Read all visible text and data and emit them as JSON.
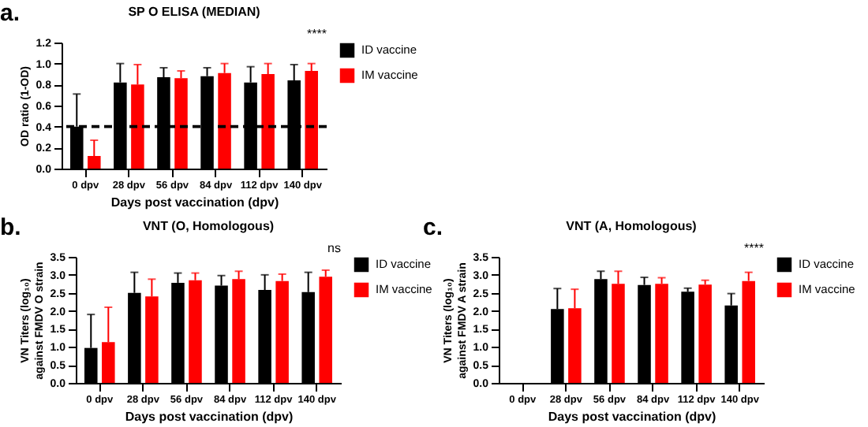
{
  "chart_data": [
    {
      "type": "bar",
      "title": "SP O ELISA (MEDIAN)",
      "xlabel": "Days post vaccination (dpv)",
      "ylabel": "OD ratio (1-OD)",
      "categories": [
        "0 dpv",
        "28 dpv",
        "56 dpv",
        "84 dpv",
        "112 dpv",
        "140 dpv"
      ],
      "series": [
        {
          "name": "ID vaccine",
          "color": "#000000",
          "values": [
            0.4,
            0.82,
            0.87,
            0.88,
            0.82,
            0.84
          ],
          "errors": [
            [
              0.4,
              0.71
            ],
            [
              0.82,
              1.0
            ],
            [
              0.87,
              0.96
            ],
            [
              0.88,
              0.96
            ],
            [
              0.82,
              0.97
            ],
            [
              0.84,
              0.99
            ]
          ]
        },
        {
          "name": "IM vaccine",
          "color": "#ff0000",
          "values": [
            0.12,
            0.8,
            0.86,
            0.91,
            0.9,
            0.93
          ],
          "errors": [
            [
              0.12,
              0.27
            ],
            [
              0.8,
              0.99
            ],
            [
              0.86,
              0.93
            ],
            [
              0.91,
              1.0
            ],
            [
              0.9,
              1.0
            ],
            [
              0.93,
              1.0
            ]
          ]
        }
      ],
      "ylim": [
        0,
        1.2
      ],
      "yticks": [
        {
          "value": 0,
          "label": "0.0"
        },
        {
          "value": 0.2,
          "label": "0.2"
        },
        {
          "value": 0.4,
          "label": "0.4"
        },
        {
          "value": 0.6,
          "label": "0.6"
        },
        {
          "value": 0.8,
          "label": "0.8"
        },
        {
          "value": 1,
          "label": "1.0"
        },
        {
          "value": 1.2,
          "label": "1.2"
        }
      ],
      "ref_lines": [
        {
          "axis": "y",
          "value": 0.4,
          "color": "#000000",
          "line_style": "dashed"
        }
      ],
      "legend": "right",
      "annotations": [
        "a.",
        "****"
      ]
    },
    {
      "type": "bar",
      "title": "VNT (O, Homologous)",
      "xlabel": "Days post vaccination (dpv)",
      "ylabel": "VN Titers (log₁₀)\nagainst FMDV O strain",
      "categories": [
        "0 dpv",
        "28 dpv",
        "56 dpv",
        "84 dpv",
        "112 dpv",
        "140 dpv"
      ],
      "series": [
        {
          "name": "ID vaccine",
          "color": "#000000",
          "values": [
            0.97,
            2.5,
            2.78,
            2.7,
            2.58,
            2.52
          ],
          "errors": [
            [
              0.97,
              1.9
            ],
            [
              2.5,
              3.07
            ],
            [
              2.78,
              3.05
            ],
            [
              2.7,
              2.98
            ],
            [
              2.58,
              3.0
            ],
            [
              2.52,
              3.07
            ]
          ]
        },
        {
          "name": "IM vaccine",
          "color": "#ff0000",
          "values": [
            1.13,
            2.4,
            2.85,
            2.88,
            2.83,
            2.95
          ],
          "errors": [
            [
              1.13,
              2.1
            ],
            [
              2.4,
              2.88
            ],
            [
              2.85,
              3.05
            ],
            [
              2.88,
              3.1
            ],
            [
              2.83,
              3.02
            ],
            [
              2.95,
              3.13
            ]
          ]
        }
      ],
      "ylim": [
        0,
        3.5
      ],
      "yticks": [
        {
          "value": 0,
          "label": "0.0"
        },
        {
          "value": 0.5,
          "label": "0.5"
        },
        {
          "value": 1,
          "label": "1.0"
        },
        {
          "value": 1.5,
          "label": "1.5"
        },
        {
          "value": 2,
          "label": "2.0"
        },
        {
          "value": 2.5,
          "label": "2.5"
        },
        {
          "value": 3,
          "label": "3.0"
        },
        {
          "value": 3.5,
          "label": "3.5"
        }
      ],
      "legend": "right",
      "annotations": [
        "b.",
        "ns"
      ]
    },
    {
      "type": "bar",
      "title": "VNT (A, Homologous)",
      "xlabel": "Days post vaccination (dpv)",
      "ylabel": "VN Titers (log₁₀)\nagainst FMDV A strain",
      "categories": [
        "0 dpv",
        "28 dpv",
        "56 dpv",
        "84 dpv",
        "112 dpv",
        "140 dpv"
      ],
      "series": [
        {
          "name": "ID vaccine",
          "color": "#000000",
          "values": [
            null,
            2.05,
            2.88,
            2.72,
            2.53,
            2.15
          ],
          "errors": [
            null,
            [
              2.05,
              2.62
            ],
            [
              2.88,
              3.1
            ],
            [
              2.72,
              2.93
            ],
            [
              2.53,
              2.63
            ],
            [
              2.15,
              2.48
            ]
          ]
        },
        {
          "name": "IM vaccine",
          "color": "#ff0000",
          "values": [
            null,
            2.07,
            2.75,
            2.75,
            2.73,
            2.83
          ],
          "errors": [
            null,
            [
              2.07,
              2.6
            ],
            [
              2.75,
              3.1
            ],
            [
              2.75,
              2.92
            ],
            [
              2.73,
              2.85
            ],
            [
              2.83,
              3.07
            ]
          ]
        }
      ],
      "ylim": [
        0,
        3.5
      ],
      "yticks": [
        {
          "value": 0,
          "label": "0.0"
        },
        {
          "value": 0.5,
          "label": "0.5"
        },
        {
          "value": 1,
          "label": "1.0"
        },
        {
          "value": 1.5,
          "label": "1.5"
        },
        {
          "value": 2,
          "label": "2.0"
        },
        {
          "value": 2.5,
          "label": "2.5"
        },
        {
          "value": 3,
          "label": "3.0"
        },
        {
          "value": 3.5,
          "label": "3.5"
        }
      ],
      "legend": "right",
      "annotations": [
        "c.",
        "****"
      ]
    }
  ]
}
